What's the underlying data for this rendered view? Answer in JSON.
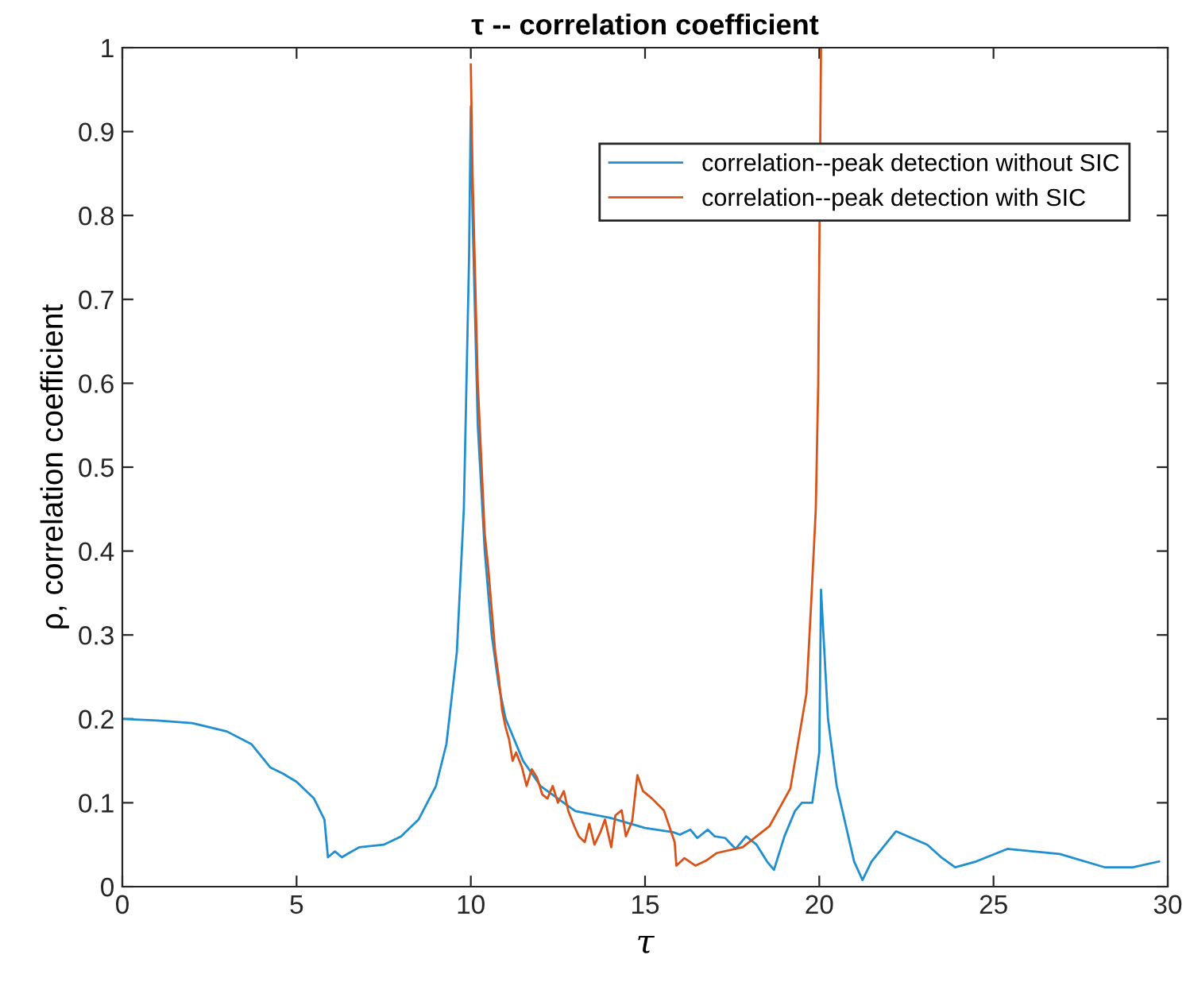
{
  "chart_data": {
    "type": "line",
    "title": "τ -- correlation coefficient",
    "xlabel": "τ",
    "ylabel": "ρ, correlation coefficient",
    "xlim": [
      0,
      30
    ],
    "ylim": [
      0,
      1
    ],
    "xticks": [
      0,
      5,
      10,
      15,
      20,
      25,
      30
    ],
    "yticks": [
      0,
      0.1,
      0.2,
      0.3,
      0.4,
      0.5,
      0.6,
      0.7,
      0.8,
      0.9,
      1
    ],
    "grid": false,
    "legend": "top right",
    "marker": "none",
    "line_style": "solid",
    "series": [
      {
        "name": "correlation--peak detection without SIC",
        "color": "#1f8fd0",
        "x": [
          0,
          1,
          2,
          3,
          3.7,
          4.25,
          4.6,
          5,
          5.5,
          5.8,
          5.9,
          6.1,
          6.3,
          6.5,
          6.8,
          7.5,
          8,
          8.5,
          9,
          9.3,
          9.6,
          9.8,
          9.95,
          10.0,
          10.05,
          10.2,
          10.4,
          10.6,
          10.8,
          11.0,
          11.5,
          12,
          12.5,
          13,
          14,
          15,
          15.8,
          16,
          16.3,
          16.5,
          16.8,
          17,
          17.3,
          17.6,
          17.9,
          18.2,
          18.5,
          18.7,
          19.0,
          19.3,
          19.5,
          19.8,
          20.0,
          20.05,
          20.25,
          20.5,
          21.0,
          21.24,
          21.5,
          22.2,
          23.1,
          23.5,
          23.9,
          24.5,
          25.4,
          26.9,
          28.2,
          29.0,
          29.75
        ],
        "values": [
          0.2,
          0.198,
          0.195,
          0.185,
          0.17,
          0.142,
          0.135,
          0.125,
          0.105,
          0.08,
          0.035,
          0.042,
          0.035,
          0.04,
          0.047,
          0.05,
          0.06,
          0.08,
          0.12,
          0.17,
          0.28,
          0.45,
          0.75,
          0.93,
          0.8,
          0.55,
          0.4,
          0.3,
          0.24,
          0.2,
          0.15,
          0.12,
          0.105,
          0.09,
          0.082,
          0.07,
          0.065,
          0.062,
          0.068,
          0.058,
          0.068,
          0.06,
          0.058,
          0.045,
          0.06,
          0.05,
          0.03,
          0.02,
          0.06,
          0.09,
          0.1,
          0.1,
          0.16,
          0.354,
          0.2,
          0.12,
          0.03,
          0.008,
          0.03,
          0.066,
          0.05,
          0.035,
          0.023,
          0.03,
          0.045,
          0.039,
          0.023,
          0.023,
          0.03
        ]
      },
      {
        "name": "correlation--peak detection with SIC",
        "color": "#d95319",
        "x": [
          10.0,
          10.05,
          10.2,
          10.4,
          10.5,
          10.6,
          10.7,
          10.8,
          10.9,
          11.0,
          11.1,
          11.2,
          11.3,
          11.47,
          11.6,
          11.75,
          11.9,
          12.05,
          12.2,
          12.35,
          12.5,
          12.67,
          12.8,
          12.97,
          13.1,
          13.27,
          13.4,
          13.55,
          13.73,
          13.85,
          14.03,
          14.15,
          14.33,
          14.45,
          14.63,
          14.78,
          14.94,
          15.2,
          15.54,
          15.85,
          15.9,
          16.13,
          16.45,
          16.75,
          17.05,
          17.8,
          18.57,
          19.17,
          19.63,
          19.77,
          19.9,
          19.97,
          20.05
        ],
        "values": [
          0.98,
          0.85,
          0.6,
          0.42,
          0.38,
          0.33,
          0.28,
          0.25,
          0.21,
          0.19,
          0.175,
          0.15,
          0.16,
          0.142,
          0.12,
          0.14,
          0.13,
          0.11,
          0.105,
          0.12,
          0.1,
          0.114,
          0.09,
          0.072,
          0.06,
          0.053,
          0.075,
          0.05,
          0.066,
          0.08,
          0.047,
          0.085,
          0.091,
          0.06,
          0.078,
          0.133,
          0.114,
          0.105,
          0.091,
          0.053,
          0.025,
          0.034,
          0.025,
          0.031,
          0.04,
          0.047,
          0.072,
          0.117,
          0.23,
          0.34,
          0.45,
          0.6,
          1.0
        ]
      }
    ]
  }
}
